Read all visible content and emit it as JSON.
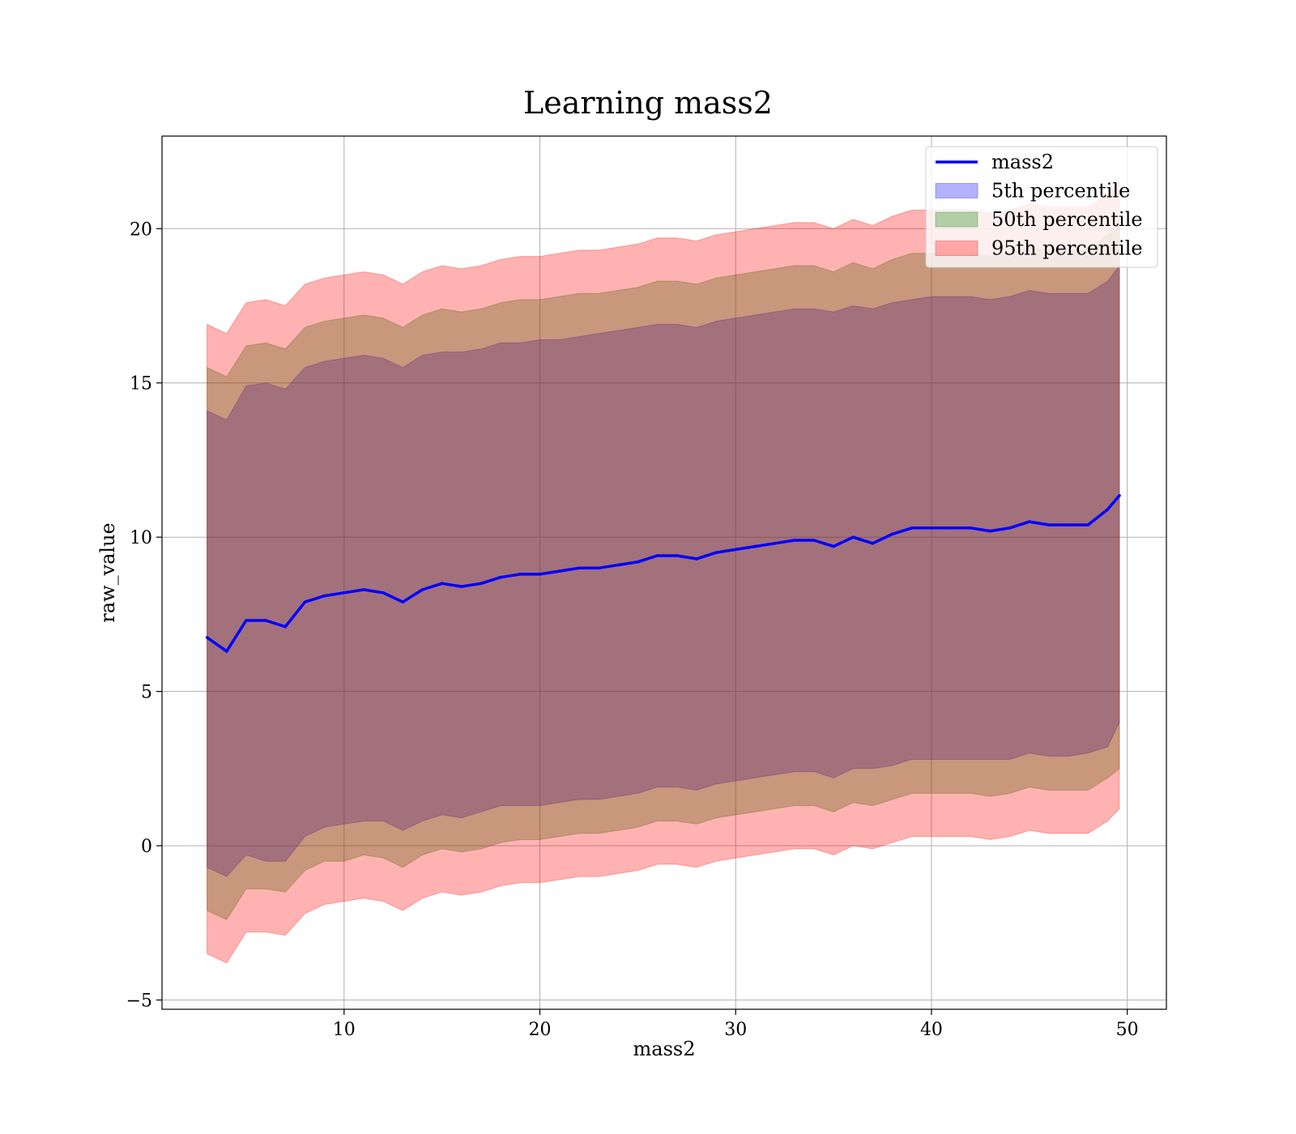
{
  "chart_data": {
    "type": "area",
    "title": "Learning mass2",
    "xlabel": "mass2",
    "ylabel": "raw_value",
    "xlim": [
      0.7,
      52
    ],
    "ylim": [
      -5.3,
      23
    ],
    "x_ticks": [
      10,
      20,
      30,
      40,
      50
    ],
    "y_ticks": [
      -5,
      0,
      5,
      10,
      15,
      20
    ],
    "x_tick_labels": [
      "10",
      "20",
      "30",
      "40",
      "50"
    ],
    "y_tick_labels": [
      "−5",
      "0",
      "5",
      "10",
      "15",
      "20"
    ],
    "grid": true,
    "legend_position": "top-right",
    "legend": [
      {
        "label": "mass2",
        "kind": "line",
        "color": "#0000ff"
      },
      {
        "label": "5th percentile",
        "kind": "patch",
        "color": "#0000ff"
      },
      {
        "label": "50th percentile",
        "kind": "patch",
        "color": "#008000"
      },
      {
        "label": "95th percentile",
        "kind": "patch",
        "color": "#ff0000"
      }
    ],
    "x": [
      3.0,
      4.0,
      5.0,
      6.0,
      7.0,
      8.0,
      9.0,
      10.0,
      11.0,
      12.0,
      13.0,
      14.0,
      15.0,
      16.0,
      17.0,
      18.0,
      19.0,
      20.0,
      21.0,
      22.0,
      23.0,
      24.0,
      25.0,
      26.0,
      27.0,
      28.0,
      29.0,
      30.0,
      31.0,
      32.0,
      33.0,
      34.0,
      35.0,
      36.0,
      37.0,
      38.0,
      39.0,
      40.0,
      41.0,
      42.0,
      43.0,
      44.0,
      45.0,
      46.0,
      47.0,
      48.0,
      49.0,
      49.6
    ],
    "series": [
      {
        "name": "mass2",
        "type": "line",
        "color": "#0000ff",
        "values": [
          6.75,
          6.3,
          7.3,
          7.3,
          7.1,
          7.9,
          8.1,
          8.2,
          8.3,
          8.2,
          7.9,
          8.3,
          8.5,
          8.4,
          8.5,
          8.7,
          8.8,
          8.8,
          8.9,
          9.0,
          9.0,
          9.1,
          9.2,
          9.4,
          9.4,
          9.3,
          9.5,
          9.6,
          9.7,
          9.8,
          9.9,
          9.9,
          9.7,
          10.0,
          9.8,
          10.1,
          10.3,
          10.3,
          10.3,
          10.3,
          10.2,
          10.3,
          10.5,
          10.4,
          10.4,
          10.4,
          10.9,
          11.35
        ]
      },
      {
        "name": "5th percentile",
        "type": "band",
        "color": "#0000ff",
        "opacity": 0.3,
        "lower": [
          -0.7,
          -1.0,
          -0.3,
          -0.5,
          -0.5,
          0.3,
          0.6,
          0.7,
          0.8,
          0.8,
          0.5,
          0.8,
          1.0,
          0.9,
          1.1,
          1.3,
          1.3,
          1.3,
          1.4,
          1.5,
          1.5,
          1.6,
          1.7,
          1.9,
          1.9,
          1.8,
          2.0,
          2.1,
          2.2,
          2.3,
          2.4,
          2.4,
          2.2,
          2.5,
          2.5,
          2.6,
          2.8,
          2.8,
          2.8,
          2.8,
          2.8,
          2.8,
          3.0,
          2.9,
          2.9,
          3.0,
          3.2,
          4.0
        ],
        "upper": [
          14.1,
          13.8,
          14.9,
          15.0,
          14.8,
          15.5,
          15.7,
          15.8,
          15.9,
          15.8,
          15.5,
          15.9,
          16.0,
          16.0,
          16.1,
          16.3,
          16.3,
          16.4,
          16.4,
          16.5,
          16.6,
          16.7,
          16.8,
          16.9,
          16.9,
          16.8,
          17.0,
          17.1,
          17.2,
          17.3,
          17.4,
          17.4,
          17.3,
          17.5,
          17.4,
          17.6,
          17.7,
          17.8,
          17.8,
          17.8,
          17.7,
          17.8,
          18.0,
          17.9,
          17.9,
          17.9,
          18.3,
          18.8
        ]
      },
      {
        "name": "50th percentile",
        "type": "band",
        "color": "#008000",
        "opacity": 0.3,
        "lower": [
          -2.1,
          -2.4,
          -1.4,
          -1.4,
          -1.5,
          -0.8,
          -0.5,
          -0.5,
          -0.3,
          -0.4,
          -0.7,
          -0.3,
          -0.1,
          -0.2,
          -0.1,
          0.1,
          0.2,
          0.2,
          0.3,
          0.4,
          0.4,
          0.5,
          0.6,
          0.8,
          0.8,
          0.7,
          0.9,
          1.0,
          1.1,
          1.2,
          1.3,
          1.3,
          1.1,
          1.4,
          1.3,
          1.5,
          1.7,
          1.7,
          1.7,
          1.7,
          1.6,
          1.7,
          1.9,
          1.8,
          1.8,
          1.8,
          2.2,
          2.5
        ],
        "upper": [
          15.5,
          15.2,
          16.2,
          16.3,
          16.1,
          16.8,
          17.0,
          17.1,
          17.2,
          17.1,
          16.8,
          17.2,
          17.4,
          17.3,
          17.4,
          17.6,
          17.7,
          17.7,
          17.8,
          17.9,
          17.9,
          18.0,
          18.1,
          18.3,
          18.3,
          18.2,
          18.4,
          18.5,
          18.6,
          18.7,
          18.8,
          18.8,
          18.6,
          18.9,
          18.7,
          19.0,
          19.2,
          19.2,
          19.2,
          19.2,
          19.1,
          19.2,
          19.4,
          19.3,
          19.3,
          19.3,
          19.8,
          20.3
        ]
      },
      {
        "name": "95th percentile",
        "type": "band",
        "color": "#ff0000",
        "opacity": 0.3,
        "lower": [
          -3.5,
          -3.8,
          -2.8,
          -2.8,
          -2.9,
          -2.2,
          -1.9,
          -1.8,
          -1.7,
          -1.8,
          -2.1,
          -1.7,
          -1.5,
          -1.6,
          -1.5,
          -1.3,
          -1.2,
          -1.2,
          -1.1,
          -1.0,
          -1.0,
          -0.9,
          -0.8,
          -0.6,
          -0.6,
          -0.7,
          -0.5,
          -0.4,
          -0.3,
          -0.2,
          -0.1,
          -0.1,
          -0.3,
          0.0,
          -0.1,
          0.1,
          0.3,
          0.3,
          0.3,
          0.3,
          0.2,
          0.3,
          0.5,
          0.4,
          0.4,
          0.4,
          0.8,
          1.2
        ],
        "upper": [
          16.9,
          16.6,
          17.6,
          17.7,
          17.5,
          18.2,
          18.4,
          18.5,
          18.6,
          18.5,
          18.2,
          18.6,
          18.8,
          18.7,
          18.8,
          19.0,
          19.1,
          19.1,
          19.2,
          19.3,
          19.3,
          19.4,
          19.5,
          19.7,
          19.7,
          19.6,
          19.8,
          19.9,
          20.0,
          20.1,
          20.2,
          20.2,
          20.0,
          20.3,
          20.1,
          20.4,
          20.6,
          20.6,
          20.6,
          20.6,
          20.5,
          20.6,
          20.8,
          20.7,
          20.7,
          20.7,
          21.1,
          21.5
        ]
      }
    ]
  }
}
